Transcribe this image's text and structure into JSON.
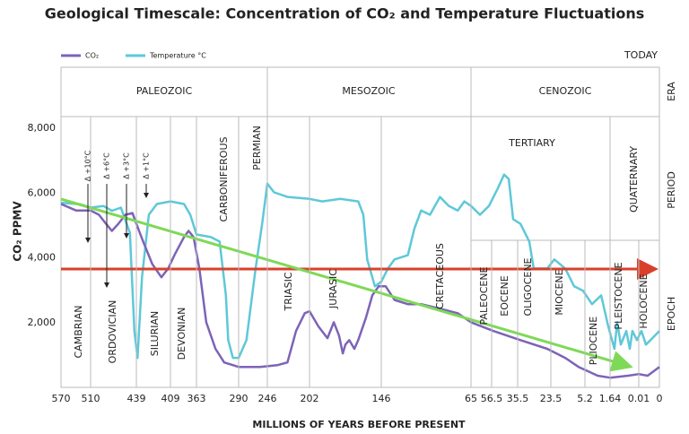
{
  "chart_data": {
    "type": "line",
    "title": "Geological Timescale: Concentration of CO₂ and Temperature Fluctuations",
    "x_label": "MILLIONS OF YEARS BEFORE PRESENT",
    "y_label": "CO₂ PPMV",
    "today_label": "TODAY",
    "row_labels": [
      "ERA",
      "PERIOD",
      "EPOCH"
    ],
    "eras": [
      "PALEOZOIC",
      "MESOZOIC",
      "CENOZOIC"
    ],
    "periods": [
      "CAMBRIAN",
      "ORDOVICIAN",
      "SILURIAN",
      "DEVONIAN",
      "CARBONIFEROUS",
      "PERMIAN",
      "TRIASIC",
      "JURASIC",
      "CRETACEOUS",
      "TERTIARY",
      "QUATERNARY"
    ],
    "epochs": [
      "PALEOCENE",
      "EOCENE",
      "OLIGOCENE",
      "MIOCENE",
      "PLIOCENE",
      "PLEISTOCENE",
      "HOLOCENE"
    ],
    "annotations": [
      "Δ +10°C",
      "Δ +6°C",
      "Δ +3°C",
      "Δ +1°C"
    ],
    "xlim": [
      570,
      0
    ],
    "xticks": [
      570,
      510,
      439,
      409,
      363,
      290,
      246,
      202,
      146,
      65,
      56.5,
      35.5,
      23.5,
      5.2,
      1.64,
      0.01,
      0
    ],
    "ylim": [
      0,
      8000
    ],
    "yticks": [
      {
        "value": 2000,
        "label": "2,000"
      },
      {
        "value": 4000,
        "label": "4,000"
      },
      {
        "value": 6000,
        "label": "6,000"
      },
      {
        "value": 8000,
        "label": "8,000"
      }
    ],
    "series": [
      {
        "name": "CO₂",
        "color": "#7d63b8",
        "x": [
          570,
          539,
          510,
          497,
          486,
          477,
          467,
          456,
          445,
          439,
          433,
          425,
          417,
          411,
          402,
          385,
          377,
          368,
          358,
          346,
          330,
          315,
          290,
          257,
          235,
          225,
          216,
          207,
          202,
          195,
          188,
          183,
          179,
          176,
          174,
          171,
          167,
          164,
          158,
          153,
          148,
          142,
          134,
          122,
          110,
          93,
          77,
          65,
          55.1,
          34.5,
          24.8,
          15.8,
          8.6,
          4.8,
          3.4,
          1.64,
          0.62,
          0.01,
          0.0057,
          0
        ],
        "values": [
          5660,
          5460,
          5460,
          5330,
          5050,
          4830,
          5050,
          5330,
          5380,
          5050,
          4500,
          3810,
          3400,
          3670,
          4080,
          4640,
          4830,
          4640,
          3670,
          2010,
          1190,
          770,
          630,
          630,
          690,
          770,
          1740,
          2290,
          2350,
          1880,
          1520,
          2010,
          1600,
          1050,
          1320,
          1460,
          1190,
          1460,
          2150,
          2840,
          3120,
          3120,
          2700,
          2570,
          2570,
          2430,
          2290,
          2010,
          1740,
          1460,
          1190,
          910,
          630,
          500,
          360,
          300,
          360,
          410,
          360,
          630
        ]
      },
      {
        "name": "Temperature °C",
        "color": "#5ec8d8",
        "x": [
          570,
          530,
          510,
          490,
          477,
          463,
          449,
          442,
          438,
          434,
          428,
          421,
          409,
          385,
          374,
          363,
          338,
          323,
          312,
          308,
          300,
          290,
          278,
          264,
          254,
          246,
          239,
          225,
          202,
          192,
          178,
          164,
          160,
          157,
          151,
          146,
          140,
          134,
          122,
          116,
          110,
          102,
          93,
          85,
          77,
          71,
          65,
          61.3,
          57.6,
          51.4,
          46.4,
          42.7,
          39.1,
          34.5,
          31.3,
          29.7,
          24.8,
          21.6,
          15.8,
          11.0,
          6.2,
          4.2,
          2.9,
          1.9,
          1.39,
          1.23,
          1.03,
          0.72,
          0.52,
          0.37,
          0.11,
          0.0087,
          0.0065,
          0.0043,
          0
        ],
        "values": [
          5700,
          5650,
          5550,
          5600,
          5450,
          5550,
          4770,
          1740,
          910,
          3400,
          5330,
          5660,
          5740,
          5660,
          5330,
          4720,
          4640,
          4500,
          2840,
          1460,
          910,
          910,
          1460,
          3670,
          5050,
          6290,
          6020,
          5880,
          5820,
          5740,
          5820,
          5740,
          5330,
          3950,
          3120,
          3260,
          3670,
          3950,
          4080,
          4910,
          5460,
          5330,
          5880,
          5600,
          5460,
          5740,
          5600,
          5330,
          5600,
          6150,
          6570,
          6430,
          5190,
          5050,
          4500,
          3670,
          3670,
          3950,
          3670,
          3120,
          2980,
          2570,
          2840,
          1880,
          1190,
          2010,
          1320,
          1740,
          1190,
          1740,
          1460,
          1740,
          1320,
          1460,
          1740
        ]
      }
    ]
  }
}
